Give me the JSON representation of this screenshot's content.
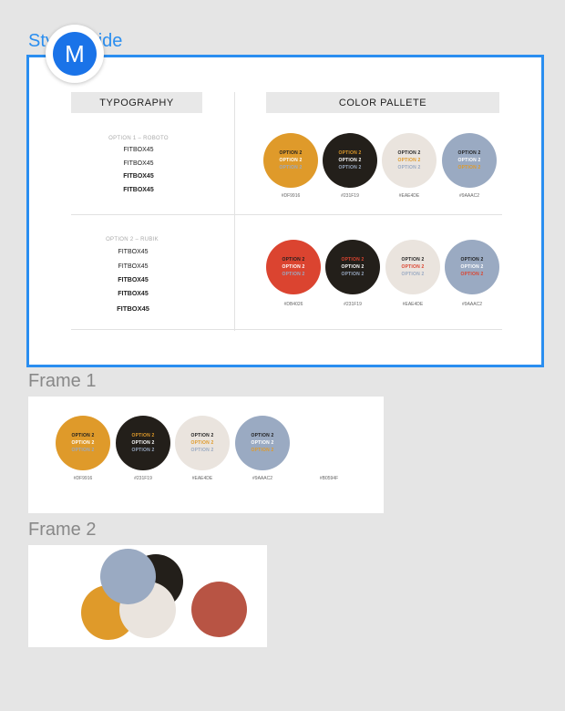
{
  "canvas": {
    "style_guide_title": "Style Guide",
    "frame1_title": "Frame 1",
    "frame2_title": "Frame 2",
    "avatar_initial": "M"
  },
  "style_guide": {
    "typography_header": "TYPOGRAPHY",
    "color_header": "COLOR PALLETE",
    "option1_label": "OPTION 1 – ROBOTO",
    "option2_label": "OPTION 2 – RUBIK",
    "option1_samples": [
      "FITBOX45",
      "FITBOX45",
      "FITBOX45",
      "FITBOX45"
    ],
    "option2_samples": [
      "FITBOX45",
      "FITBOX45",
      "FITBOX45",
      "FITBOX45",
      "FITBOX45"
    ],
    "palette1": [
      {
        "hex": "#DF9916",
        "color": "#df9a2a",
        "lines": [
          {
            "t": "OPTION 2",
            "c": "#1e1e1e"
          },
          {
            "t": "OPTION 2",
            "c": "#ffffff"
          },
          {
            "t": "OPTION 2",
            "c": "#9aaac2"
          }
        ]
      },
      {
        "hex": "#231F19",
        "color": "#231f1a",
        "lines": [
          {
            "t": "OPTION 2",
            "c": "#df9a2a"
          },
          {
            "t": "OPTION 2",
            "c": "#ffffff"
          },
          {
            "t": "OPTION 2",
            "c": "#9aaac2"
          }
        ]
      },
      {
        "hex": "#EAE4DE",
        "color": "#eae4de",
        "lines": [
          {
            "t": "OPTION 2",
            "c": "#1e1e1e"
          },
          {
            "t": "OPTION 2",
            "c": "#df9a2a"
          },
          {
            "t": "OPTION 2",
            "c": "#9aaac2"
          }
        ]
      },
      {
        "hex": "#9AAAC2",
        "color": "#9aaac2",
        "lines": [
          {
            "t": "OPTION 2",
            "c": "#1e1e1e"
          },
          {
            "t": "OPTION 2",
            "c": "#ffffff"
          },
          {
            "t": "OPTION 2",
            "c": "#df9a2a"
          }
        ]
      }
    ],
    "palette2": [
      {
        "hex": "#DB4026",
        "color": "#db4430",
        "lines": [
          {
            "t": "OPTION 2",
            "c": "#1e1e1e"
          },
          {
            "t": "OPTION 2",
            "c": "#ffffff"
          },
          {
            "t": "OPTION 2",
            "c": "#9aaac2"
          }
        ]
      },
      {
        "hex": "#231F19",
        "color": "#231f1a",
        "lines": [
          {
            "t": "OPTION 2",
            "c": "#db4430"
          },
          {
            "t": "OPTION 2",
            "c": "#ffffff"
          },
          {
            "t": "OPTION 2",
            "c": "#9aaac2"
          }
        ]
      },
      {
        "hex": "#EAE4DE",
        "color": "#eae4de",
        "lines": [
          {
            "t": "OPTION 2",
            "c": "#1e1e1e"
          },
          {
            "t": "OPTION 2",
            "c": "#db4430"
          },
          {
            "t": "OPTION 2",
            "c": "#9aaac2"
          }
        ]
      },
      {
        "hex": "#9AAAC2",
        "color": "#9aaac2",
        "lines": [
          {
            "t": "OPTION 2",
            "c": "#1e1e1e"
          },
          {
            "t": "OPTION 2",
            "c": "#ffffff"
          },
          {
            "t": "OPTION 2",
            "c": "#db4430"
          }
        ]
      }
    ]
  },
  "frame1": {
    "palette": [
      {
        "hex": "#DF9916",
        "color": "#df9a2a",
        "lines": [
          {
            "t": "OPTION 2",
            "c": "#1e1e1e"
          },
          {
            "t": "OPTION 2",
            "c": "#ffffff"
          },
          {
            "t": "OPTION 2",
            "c": "#9aaac2"
          }
        ]
      },
      {
        "hex": "#231F19",
        "color": "#231f1a",
        "lines": [
          {
            "t": "OPTION 2",
            "c": "#df9a2a"
          },
          {
            "t": "OPTION 2",
            "c": "#ffffff"
          },
          {
            "t": "OPTION 2",
            "c": "#9aaac2"
          }
        ]
      },
      {
        "hex": "#EAE4DE",
        "color": "#eae4de",
        "lines": [
          {
            "t": "OPTION 2",
            "c": "#1e1e1e"
          },
          {
            "t": "OPTION 2",
            "c": "#df9a2a"
          },
          {
            "t": "OPTION 2",
            "c": "#9aaac2"
          }
        ]
      },
      {
        "hex": "#9AAAC2",
        "color": "#9aaac2",
        "lines": [
          {
            "t": "OPTION 2",
            "c": "#1e1e1e"
          },
          {
            "t": "OPTION 2",
            "c": "#ffffff"
          },
          {
            "t": "OPTION 2",
            "c": "#df9a2a"
          }
        ]
      }
    ],
    "extra_hex": "#B0594F"
  },
  "frame2": {
    "colors": {
      "gold": "#df9a2a",
      "dark": "#231f1a",
      "blue": "#9aaac2",
      "cream": "#eae4de",
      "rust": "#b85444"
    }
  }
}
